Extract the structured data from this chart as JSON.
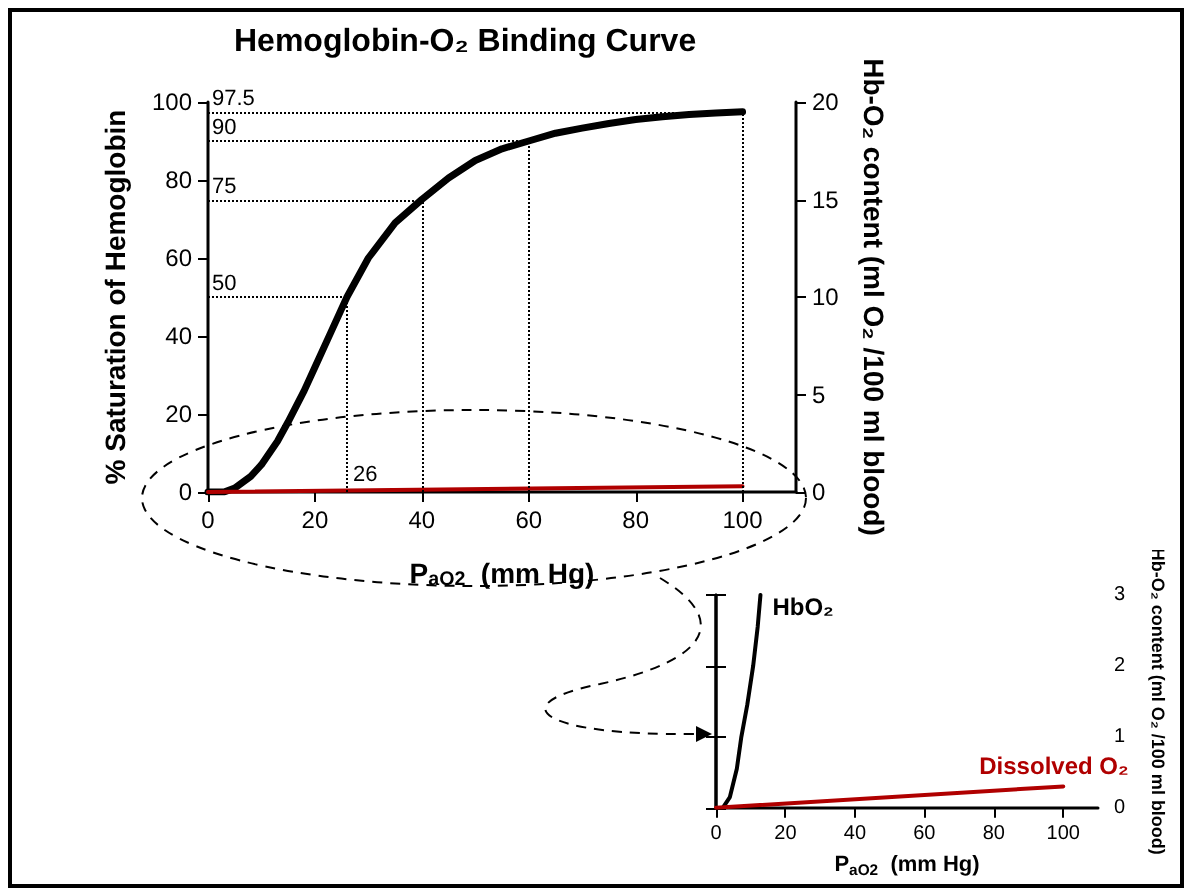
{
  "chart_data": [
    {
      "type": "line",
      "title": "Hemoglobin-O₂ Binding Curve",
      "xlabel": "P$_{aO2}$  (mm Hg)",
      "ylabel": "% Saturation of Hemoglobin",
      "y2label": "Hb-O₂ content (ml O₂ /100 ml blood)",
      "xlim": [
        0,
        110
      ],
      "xticks": [
        0,
        20,
        40,
        60,
        80,
        100
      ],
      "ylim": [
        0,
        100
      ],
      "yticks": [
        0,
        20,
        40,
        60,
        80,
        100
      ],
      "y2lim": [
        0,
        20
      ],
      "y2ticks": [
        0,
        5,
        10,
        15,
        20
      ],
      "series": [
        {
          "color": "#000000",
          "x": [
            0,
            3,
            5,
            8,
            10,
            13,
            15,
            18,
            20,
            23,
            26,
            30,
            35,
            40,
            45,
            50,
            55,
            60,
            65,
            70,
            75,
            80,
            85,
            90,
            95,
            100
          ],
          "values": [
            0,
            0,
            1,
            4,
            7,
            13,
            18,
            26,
            32,
            41,
            50,
            60,
            69,
            75,
            80.5,
            85,
            88,
            90,
            92,
            93.3,
            94.5,
            95.5,
            96.2,
            96.8,
            97.2,
            97.5
          ]
        },
        {
          "color": "#b00000",
          "axis": "y2",
          "x": [
            0,
            100
          ],
          "values": [
            0,
            0.3
          ]
        }
      ],
      "ref_lines": [
        {
          "axis": "y",
          "value": 97.5,
          "label": "97.5",
          "line_style": "dotted",
          "color": "#000000"
        },
        {
          "axis": "y",
          "value": 90,
          "label": "90",
          "line_style": "dotted",
          "color": "#000000"
        },
        {
          "axis": "y",
          "value": 75,
          "label": "75",
          "line_style": "dotted",
          "color": "#000000"
        },
        {
          "axis": "y",
          "value": 50,
          "label": "50",
          "line_style": "dotted",
          "color": "#000000"
        },
        {
          "axis": "x",
          "value": 26,
          "label": "26",
          "line_style": "dotted",
          "color": "#000000"
        },
        {
          "axis": "x",
          "value": 40,
          "line_style": "dotted",
          "color": "#000000"
        },
        {
          "axis": "x",
          "value": 60,
          "line_style": "dotted",
          "color": "#000000"
        },
        {
          "axis": "x",
          "value": 100,
          "line_style": "dotted",
          "color": "#000000"
        }
      ]
    },
    {
      "type": "line",
      "xlabel": "P$_{aO2}$  (mm Hg)",
      "ylabel": "Hb-O₂ content (ml O₂ /100 ml blood)",
      "xlim": [
        0,
        110
      ],
      "xticks": [
        0,
        20,
        40,
        60,
        80,
        100
      ],
      "ylim": [
        0,
        3
      ],
      "yticks": [
        0,
        1,
        2,
        3
      ],
      "series": [
        {
          "name": "HbO₂",
          "color": "#000000",
          "x": [
            2,
            4,
            6,
            7.3,
            9,
            10.7,
            12,
            12.8
          ],
          "values": [
            0,
            0.15,
            0.55,
            1,
            1.45,
            2,
            2.55,
            3
          ]
        },
        {
          "name": "Dissolved O₂",
          "color": "#b00000",
          "x": [
            0,
            100
          ],
          "values": [
            0,
            0.3
          ]
        }
      ]
    }
  ]
}
